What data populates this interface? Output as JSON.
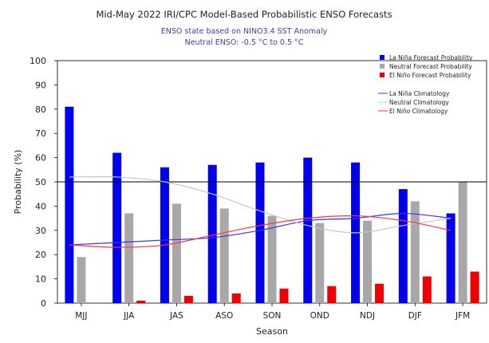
{
  "chart_data": {
    "type": "bar",
    "title": "Mid-May 2022 IRI/CPC Model-Based Probabilistic ENSO Forecasts",
    "subtitle_lines": [
      "ENSO state based on NINO3.4 SST Anomaly",
      "Neutral ENSO: -0.5 °C to 0.5 °C"
    ],
    "xlabel": "Season",
    "ylabel": "Probability (%)",
    "ylim": [
      0,
      100
    ],
    "yticks": [
      0,
      10,
      20,
      30,
      40,
      50,
      60,
      70,
      80,
      90,
      100
    ],
    "reference_line": 50,
    "grid": false,
    "legend_position": "top-right",
    "categories": [
      "MJJ",
      "JJA",
      "JAS",
      "ASO",
      "SON",
      "OND",
      "NDJ",
      "DJF",
      "JFM"
    ],
    "series": [
      {
        "name": "La Niña Forecast Probability",
        "kind": "bar",
        "color": "#0000ee",
        "values": [
          81,
          62,
          56,
          57,
          58,
          60,
          58,
          47,
          37
        ]
      },
      {
        "name": "Neutral Forecast Probability",
        "kind": "bar",
        "color": "#a8a8a8",
        "values": [
          19,
          37,
          41,
          39,
          36,
          33,
          34,
          42,
          50
        ]
      },
      {
        "name": "El Niño Forecast Probability",
        "kind": "bar",
        "color": "#ee0000",
        "values": [
          0,
          1,
          3,
          4,
          6,
          7,
          8,
          11,
          13
        ]
      }
    ],
    "climatology": [
      {
        "name": "La Niña Climatology",
        "kind": "line",
        "color": "#3333ff",
        "values": [
          24,
          25,
          26,
          27,
          30,
          34,
          35,
          37,
          35
        ]
      },
      {
        "name": "Neutral Climatology",
        "kind": "line",
        "color": "#c8c8c8",
        "values": [
          52,
          52,
          50,
          45,
          38,
          32,
          29,
          32,
          35
        ]
      },
      {
        "name": "El Niño Climatology",
        "kind": "line",
        "color": "#ff3333",
        "values": [
          24,
          23,
          24,
          28,
          32,
          35,
          36,
          34,
          30
        ]
      }
    ]
  }
}
